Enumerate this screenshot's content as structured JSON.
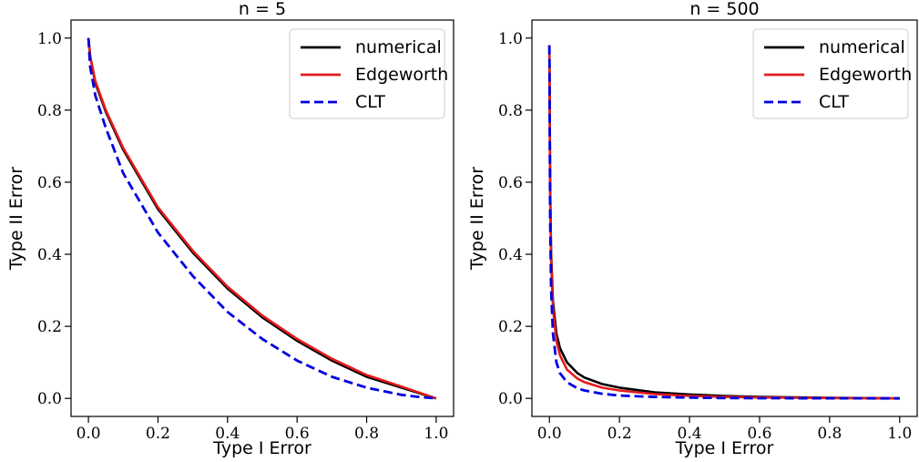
{
  "chart_data": [
    {
      "type": "line",
      "title": "n = 5",
      "xlabel": "Type I Error",
      "ylabel": "Type II Error",
      "xlim": [
        -0.05,
        1.05
      ],
      "ylim": [
        -0.05,
        1.05
      ],
      "xticks": [
        "0.0",
        "0.2",
        "0.4",
        "0.6",
        "0.8",
        "1.0"
      ],
      "yticks": [
        "0.0",
        "0.2",
        "0.4",
        "0.6",
        "0.8",
        "1.0"
      ],
      "grid": false,
      "legend_position": "top-right",
      "series": [
        {
          "name": "numerical",
          "color": "#000000",
          "style": "solid",
          "x": [
            0.0,
            0.005,
            0.02,
            0.05,
            0.1,
            0.2,
            0.3,
            0.4,
            0.5,
            0.6,
            0.7,
            0.8,
            0.9,
            1.0
          ],
          "y": [
            1.0,
            0.95,
            0.875,
            0.795,
            0.69,
            0.525,
            0.405,
            0.305,
            0.225,
            0.16,
            0.105,
            0.06,
            0.03,
            0.0
          ]
        },
        {
          "name": "Edgeworth",
          "color": "#e41a1c",
          "style": "solid",
          "x": [
            0.0,
            0.005,
            0.02,
            0.05,
            0.1,
            0.2,
            0.3,
            0.4,
            0.5,
            0.6,
            0.7,
            0.8,
            0.9,
            1.0
          ],
          "y": [
            1.0,
            0.95,
            0.88,
            0.8,
            0.695,
            0.53,
            0.41,
            0.31,
            0.23,
            0.165,
            0.11,
            0.065,
            0.033,
            0.0
          ]
        },
        {
          "name": "CLT",
          "color": "#0000e0",
          "style": "dashed",
          "x": [
            0.0,
            0.005,
            0.02,
            0.05,
            0.1,
            0.2,
            0.3,
            0.4,
            0.5,
            0.6,
            0.7,
            0.8,
            0.9,
            0.95,
            1.0
          ],
          "y": [
            1.0,
            0.92,
            0.84,
            0.75,
            0.625,
            0.46,
            0.34,
            0.24,
            0.165,
            0.105,
            0.06,
            0.03,
            0.01,
            0.004,
            0.0
          ]
        }
      ]
    },
    {
      "type": "line",
      "title": "n = 500",
      "xlabel": "Type I Error",
      "ylabel": "Type II Error",
      "xlim": [
        -0.05,
        1.05
      ],
      "ylim": [
        -0.05,
        1.05
      ],
      "xticks": [
        "0.0",
        "0.2",
        "0.4",
        "0.6",
        "0.8",
        "1.0"
      ],
      "yticks": [
        "0.0",
        "0.2",
        "0.4",
        "0.6",
        "0.8",
        "1.0"
      ],
      "grid": false,
      "legend_position": "top-right",
      "series": [
        {
          "name": "numerical",
          "color": "#000000",
          "style": "solid",
          "x": [
            0.0,
            0.002,
            0.005,
            0.01,
            0.02,
            0.03,
            0.05,
            0.08,
            0.1,
            0.15,
            0.2,
            0.3,
            0.4,
            0.5,
            0.6,
            0.8,
            1.0
          ],
          "y": [
            0.98,
            0.6,
            0.4,
            0.27,
            0.18,
            0.14,
            0.1,
            0.07,
            0.058,
            0.04,
            0.03,
            0.017,
            0.011,
            0.007,
            0.004,
            0.0015,
            0.0
          ]
        },
        {
          "name": "Edgeworth",
          "color": "#e41a1c",
          "style": "solid",
          "x": [
            0.0,
            0.002,
            0.005,
            0.01,
            0.02,
            0.03,
            0.05,
            0.08,
            0.1,
            0.15,
            0.2,
            0.3,
            0.4,
            0.5,
            0.6,
            0.8,
            1.0
          ],
          "y": [
            0.98,
            0.58,
            0.38,
            0.25,
            0.16,
            0.12,
            0.08,
            0.055,
            0.045,
            0.03,
            0.022,
            0.012,
            0.007,
            0.004,
            0.0025,
            0.001,
            0.0
          ]
        },
        {
          "name": "CLT",
          "color": "#0000e0",
          "style": "dashed",
          "x": [
            0.0,
            0.002,
            0.005,
            0.01,
            0.02,
            0.03,
            0.05,
            0.08,
            0.1,
            0.15,
            0.2,
            0.3,
            0.4,
            0.5,
            0.6,
            0.8,
            1.0
          ],
          "y": [
            0.98,
            0.5,
            0.3,
            0.18,
            0.1,
            0.07,
            0.045,
            0.028,
            0.022,
            0.013,
            0.008,
            0.004,
            0.002,
            0.001,
            0.0005,
            0.0002,
            0.0
          ]
        }
      ]
    }
  ]
}
